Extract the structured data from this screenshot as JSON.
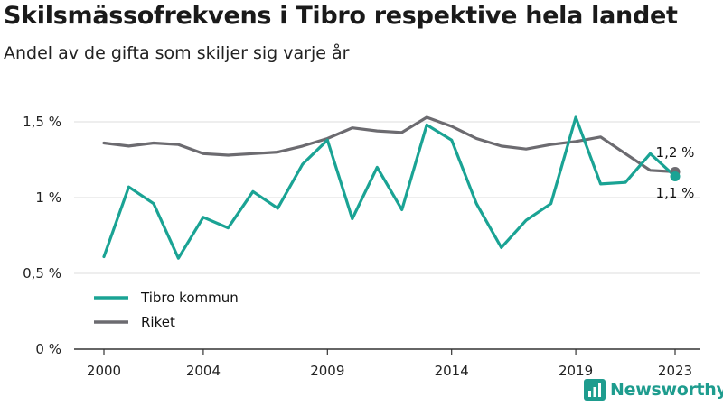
{
  "title": "Skilsmässofrekvens i Tibro respektive hela landet",
  "subtitle": "Andel av de gifta som skiljer sig varje år",
  "brand": "Newsworthy",
  "colors": {
    "tibro": "#1aa394",
    "riket": "#6c6b70",
    "grid": "#dcdcdc",
    "axis": "#333333",
    "brand": "#1e9c8e"
  },
  "chart_data": {
    "type": "line",
    "x": [
      2000,
      2001,
      2002,
      2003,
      2004,
      2005,
      2006,
      2007,
      2008,
      2009,
      2010,
      2011,
      2012,
      2013,
      2014,
      2015,
      2016,
      2017,
      2018,
      2019,
      2020,
      2021,
      2022,
      2023
    ],
    "series": [
      {
        "name": "Tibro kommun",
        "values": [
          0.61,
          1.07,
          0.96,
          0.6,
          0.87,
          0.8,
          1.04,
          0.93,
          1.22,
          1.38,
          0.86,
          1.2,
          0.92,
          1.48,
          1.38,
          0.96,
          0.67,
          0.85,
          0.96,
          1.53,
          1.09,
          1.1,
          1.29,
          1.14
        ]
      },
      {
        "name": "Riket",
        "values": [
          1.36,
          1.34,
          1.36,
          1.35,
          1.29,
          1.28,
          1.29,
          1.3,
          1.34,
          1.39,
          1.46,
          1.44,
          1.43,
          1.53,
          1.47,
          1.39,
          1.34,
          1.32,
          1.35,
          1.37,
          1.4,
          1.29,
          1.18,
          1.17
        ]
      }
    ],
    "y_ticks": [
      0,
      0.5,
      1,
      1.5
    ],
    "y_tick_labels": [
      "0 %",
      "0,5 %",
      "1 %",
      "1,5 %"
    ],
    "x_ticks": [
      2000,
      2004,
      2009,
      2014,
      2019,
      2023
    ],
    "x_tick_labels": [
      "2000",
      "2004",
      "2009",
      "2014",
      "2019",
      "2023"
    ],
    "end_labels": [
      "1,2 %",
      "1,1 %"
    ],
    "ylim": [
      0,
      1.6
    ],
    "xlim": [
      2000,
      2023
    ],
    "grid": true,
    "legend_position": "bottom-left"
  }
}
